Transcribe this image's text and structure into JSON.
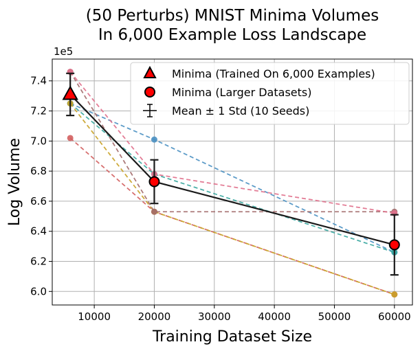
{
  "chart_data": {
    "type": "line",
    "title": [
      "(50 Perturbs) MNIST Minima Volumes",
      "In 6,000 Example Loss Landscape"
    ],
    "xlabel": "Training Dataset Size",
    "ylabel": "Log Volume",
    "y_offset_label": "1e5",
    "xlim": [
      3000,
      63000
    ],
    "ylim": [
      5.91,
      7.545
    ],
    "x_ticks": [
      10000,
      20000,
      30000,
      40000,
      50000,
      60000
    ],
    "x_tick_labels": [
      "10000",
      "20000",
      "30000",
      "40000",
      "50000",
      "60000"
    ],
    "y_ticks": [
      6.0,
      6.2,
      6.4,
      6.6,
      6.8,
      7.0,
      7.2,
      7.4
    ],
    "y_tick_labels": [
      "6.0",
      "6.2",
      "6.4",
      "6.6",
      "6.8",
      "7.0",
      "7.2",
      "7.4"
    ],
    "grid": true,
    "x": [
      6000,
      20000,
      60000
    ],
    "seed_series": [
      {
        "color": "#4a90c2",
        "values": [
          7.25,
          7.01,
          6.26
        ]
      },
      {
        "color": "#3aa7a0",
        "values": [
          7.25,
          6.78,
          6.26
        ]
      },
      {
        "color": "#d35f5f",
        "values": [
          7.02,
          6.53,
          5.98
        ]
      },
      {
        "color": "#c9a227",
        "values": [
          7.25,
          6.53,
          5.98
        ]
      },
      {
        "color": "#a36c6c",
        "values": [
          7.46,
          6.53,
          6.53
        ]
      },
      {
        "color": "#e06f8b",
        "values": [
          7.46,
          6.78,
          6.52
        ]
      }
    ],
    "mean_series": {
      "name": "Mean ± 1 Std (10 Seeds)",
      "color": "#1a1a1a",
      "values": [
        7.31,
        6.73,
        6.31
      ],
      "std": [
        0.14,
        0.145,
        0.2
      ]
    },
    "legend": {
      "position": "top-right",
      "entries": [
        {
          "label": "Minima (Trained On 6,000 Examples)",
          "marker": "triangle"
        },
        {
          "label": "Minima (Larger Datasets)",
          "marker": "circle"
        },
        {
          "label": "Mean ± 1 Std (10 Seeds)",
          "marker": "errorbar"
        }
      ]
    },
    "colors": {
      "marker_fill": "#ff0000",
      "marker_edge": "#000000",
      "grid": "#b0b0b0"
    }
  }
}
